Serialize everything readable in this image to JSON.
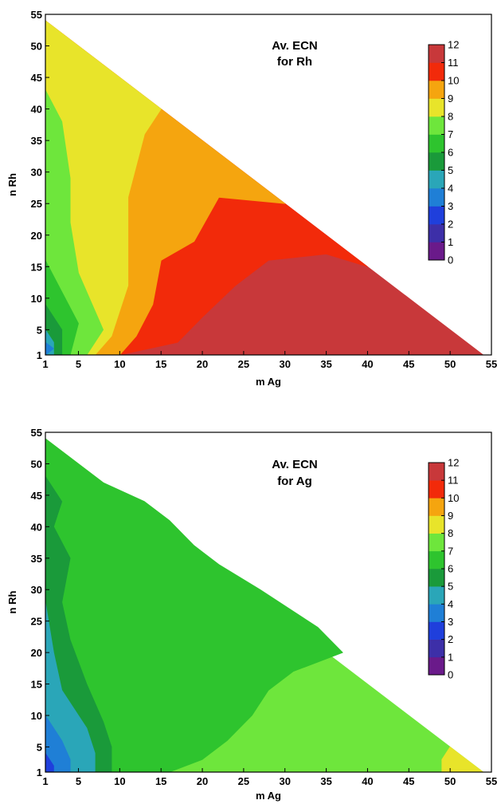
{
  "colormap": {
    "levels": [
      0,
      1,
      2,
      3,
      4,
      5,
      6,
      7,
      8,
      9,
      10,
      11,
      12
    ],
    "colors": [
      "#6a1a8a",
      "#3d2fa8",
      "#1f3fdc",
      "#1f7fd6",
      "#2aa6b8",
      "#1a9a3a",
      "#2ec42e",
      "#6ee63c",
      "#e8e42a",
      "#f5a50f",
      "#f22a0a",
      "#c8383a"
    ]
  },
  "chart_data": [
    {
      "type": "heatmap",
      "title_lines": [
        "Av. ECN",
        "for Rh"
      ],
      "xlabel": "m Ag",
      "ylabel": "n Rh",
      "xlim": [
        1,
        55
      ],
      "ylim": [
        1,
        55
      ],
      "xticks": [
        "1",
        "5",
        "10",
        "15",
        "20",
        "25",
        "30",
        "35",
        "40",
        "45",
        "50",
        "55"
      ],
      "yticks": [
        "1",
        "5",
        "10",
        "15",
        "20",
        "25",
        "30",
        "35",
        "40",
        "45",
        "50",
        "55"
      ],
      "colorbar_ticks": [
        "0",
        "1",
        "2",
        "3",
        "4",
        "5",
        "6",
        "7",
        "8",
        "9",
        "10",
        "11",
        "12"
      ],
      "domain": "m + n <= 55 (triangular)",
      "regions": [
        {
          "level": 11,
          "vertices": [
            [
              10,
              1
            ],
            [
              54,
              1
            ],
            [
              1,
              54
            ]
          ]
        },
        {
          "level": 10,
          "vertices": [
            [
              1,
              54
            ],
            [
              40,
              15
            ],
            [
              35,
              17
            ],
            [
              28,
              16
            ],
            [
              24,
              12
            ],
            [
              20,
              7
            ],
            [
              17,
              3
            ],
            [
              10,
              1
            ],
            [
              1,
              1
            ]
          ]
        },
        {
          "level": 9,
          "vertices": [
            [
              1,
              54
            ],
            [
              30,
              25
            ],
            [
              22,
              26
            ],
            [
              19,
              19
            ],
            [
              15,
              16
            ],
            [
              14,
              9
            ],
            [
              12,
              4
            ],
            [
              10,
              1
            ],
            [
              1,
              1
            ]
          ]
        },
        {
          "level": 8,
          "vertices": [
            [
              1,
              54
            ],
            [
              15,
              40
            ],
            [
              13,
              36
            ],
            [
              11,
              26
            ],
            [
              11,
              12
            ],
            [
              9,
              4
            ],
            [
              7,
              1
            ],
            [
              1,
              1
            ]
          ]
        },
        {
          "level": 7,
          "vertices": [
            [
              1,
              43
            ],
            [
              3,
              38
            ],
            [
              4,
              29
            ],
            [
              4,
              22
            ],
            [
              5,
              14
            ],
            [
              8,
              5
            ],
            [
              6,
              1
            ],
            [
              1,
              1
            ]
          ]
        },
        {
          "level": 6,
          "vertices": [
            [
              1,
              16
            ],
            [
              3,
              11
            ],
            [
              5,
              6
            ],
            [
              4,
              1
            ],
            [
              1,
              1
            ]
          ]
        },
        {
          "level": 5,
          "vertices": [
            [
              1,
              9
            ],
            [
              3,
              5
            ],
            [
              3,
              1
            ],
            [
              1,
              1
            ]
          ]
        },
        {
          "level": 4,
          "vertices": [
            [
              1,
              5
            ],
            [
              2,
              3
            ],
            [
              2,
              1
            ],
            [
              1,
              1
            ]
          ]
        },
        {
          "level": 3,
          "vertices": [
            [
              1,
              3
            ],
            [
              2,
              2
            ],
            [
              1,
              1
            ]
          ]
        }
      ]
    },
    {
      "type": "heatmap",
      "title_lines": [
        "Av. ECN",
        "for Ag"
      ],
      "xlabel": "m Ag",
      "ylabel": "n Rh",
      "xlim": [
        1,
        55
      ],
      "ylim": [
        1,
        55
      ],
      "xticks": [
        "1",
        "5",
        "10",
        "15",
        "20",
        "25",
        "30",
        "35",
        "40",
        "45",
        "50",
        "55"
      ],
      "yticks": [
        "1",
        "5",
        "10",
        "15",
        "20",
        "25",
        "30",
        "35",
        "40",
        "45",
        "50",
        "55"
      ],
      "colorbar_ticks": [
        "0",
        "1",
        "2",
        "3",
        "4",
        "5",
        "6",
        "7",
        "8",
        "9",
        "10",
        "11",
        "12"
      ],
      "domain": "m + n <= 55 (triangular)",
      "regions": [
        {
          "level": 7,
          "vertices": [
            [
              1,
              1
            ],
            [
              54,
              1
            ],
            [
              1,
              54
            ]
          ]
        },
        {
          "level": 6,
          "vertices": [
            [
              1,
              54
            ],
            [
              8,
              47
            ],
            [
              13,
              44
            ],
            [
              16,
              41
            ],
            [
              19,
              37
            ],
            [
              22,
              34
            ],
            [
              27,
              30
            ],
            [
              34,
              24
            ],
            [
              37,
              20
            ],
            [
              31,
              17
            ],
            [
              28,
              14
            ],
            [
              26,
              10
            ],
            [
              23,
              6
            ],
            [
              20,
              3
            ],
            [
              16,
              1
            ],
            [
              1,
              1
            ]
          ]
        },
        {
          "level": 5,
          "vertices": [
            [
              1,
              48
            ],
            [
              3,
              44
            ],
            [
              2,
              40
            ],
            [
              4,
              35
            ],
            [
              3,
              28
            ],
            [
              4,
              22
            ],
            [
              6,
              15
            ],
            [
              8,
              9
            ],
            [
              9,
              5
            ],
            [
              9,
              1
            ],
            [
              1,
              1
            ]
          ]
        },
        {
          "level": 4,
          "vertices": [
            [
              1,
              28
            ],
            [
              2,
              20
            ],
            [
              3,
              14
            ],
            [
              6,
              8
            ],
            [
              7,
              4
            ],
            [
              7,
              1
            ],
            [
              1,
              1
            ]
          ]
        },
        {
          "level": 3,
          "vertices": [
            [
              1,
              10
            ],
            [
              3,
              6
            ],
            [
              4,
              3
            ],
            [
              4,
              1
            ],
            [
              1,
              1
            ]
          ]
        },
        {
          "level": 2,
          "vertices": [
            [
              1,
              4
            ],
            [
              2,
              2
            ],
            [
              2,
              1
            ],
            [
              1,
              1
            ]
          ]
        },
        {
          "level": 8,
          "vertices": [
            [
              49,
              1
            ],
            [
              54,
              1
            ],
            [
              50,
              5
            ],
            [
              49,
              3
            ]
          ]
        }
      ]
    }
  ]
}
